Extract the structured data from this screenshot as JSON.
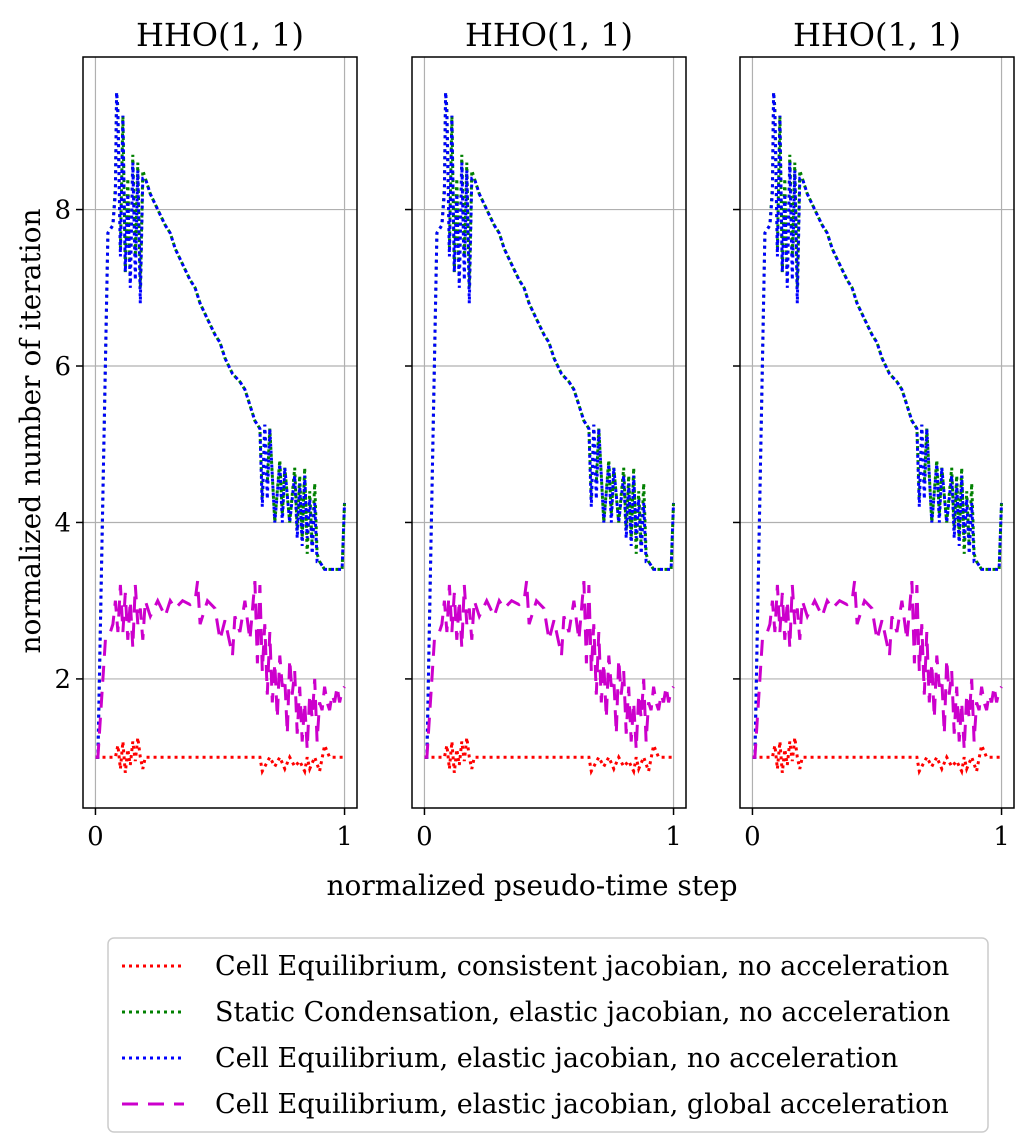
{
  "xlabel": "normalized pseudo-time step",
  "ylabel": "normalized number of iteration",
  "panel_titles": [
    "HHO(1, 1)",
    "HHO(1, 1)",
    "HHO(1, 1)"
  ],
  "x_ticks": [
    0,
    1
  ],
  "y_ticks": [
    2,
    4,
    6,
    8
  ],
  "legend": [
    "Cell Equilibrium, consistent jacobian, no acceleration",
    "Static Condensation, elastic jacobian, no acceleration",
    "Cell Equilibrium, elastic jacobian, no acceleration",
    "Cell Equilibrium, elastic jacobian, global acceleration"
  ],
  "chart_data": {
    "type": "line",
    "panels": 3,
    "sharey": true,
    "xlim": [
      -0.05,
      1.05
    ],
    "ylim": [
      0.35,
      9.95
    ],
    "grid": true,
    "legend_position": "below",
    "colors": {
      "red": "#ff0000",
      "green": "#008000",
      "blue": "#0000ff",
      "magenta": "#cc00cc"
    },
    "series": [
      {
        "name": "Cell Equilibrium, consistent jacobian, no acceleration",
        "color": "#ff0000",
        "dash": "dotted",
        "x": [
          0,
          0.03,
          0.08,
          0.09,
          0.1,
          0.11,
          0.12,
          0.13,
          0.14,
          0.15,
          0.16,
          0.17,
          0.18,
          0.19,
          0.2,
          0.66,
          0.67,
          0.7,
          0.72,
          0.74,
          0.76,
          0.78,
          0.8,
          0.82,
          0.84,
          0.85,
          0.86,
          0.88,
          0.9,
          0.92,
          0.94,
          1.0
        ],
        "y": [
          1.0,
          1.0,
          1.0,
          1.15,
          0.85,
          1.2,
          0.8,
          1.1,
          0.9,
          1.2,
          0.95,
          1.25,
          1.0,
          0.85,
          1.0,
          1.0,
          0.82,
          1.0,
          0.88,
          1.0,
          0.85,
          1.0,
          0.88,
          0.95,
          0.82,
          1.0,
          0.85,
          1.0,
          0.82,
          1.15,
          1.0,
          1.0
        ]
      },
      {
        "name": "Static Condensation, elastic jacobian, no acceleration",
        "color": "#008000",
        "dash": "dotted",
        "x": [
          0,
          0.01,
          0.05,
          0.07,
          0.08,
          0.085,
          0.09,
          0.1,
          0.11,
          0.12,
          0.13,
          0.14,
          0.15,
          0.16,
          0.17,
          0.18,
          0.19,
          0.2,
          0.22,
          0.25,
          0.28,
          0.3,
          0.32,
          0.35,
          0.38,
          0.4,
          0.42,
          0.45,
          0.48,
          0.5,
          0.52,
          0.55,
          0.58,
          0.6,
          0.62,
          0.64,
          0.66,
          0.67,
          0.68,
          0.69,
          0.7,
          0.72,
          0.74,
          0.75,
          0.76,
          0.78,
          0.8,
          0.81,
          0.82,
          0.83,
          0.84,
          0.85,
          0.86,
          0.87,
          0.88,
          0.89,
          0.9,
          0.92,
          0.94,
          0.96,
          0.98,
          0.99,
          1.0
        ],
        "y": [
          1.0,
          1.0,
          7.7,
          7.8,
          8.3,
          9.5,
          9.3,
          7.5,
          9.2,
          7.2,
          8.4,
          7.1,
          8.7,
          7.4,
          8.6,
          7.0,
          8.5,
          8.4,
          8.2,
          8.0,
          7.8,
          7.7,
          7.5,
          7.3,
          7.1,
          7.0,
          6.8,
          6.6,
          6.4,
          6.3,
          6.1,
          5.9,
          5.8,
          5.7,
          5.5,
          5.3,
          5.2,
          4.3,
          5.25,
          4.5,
          5.2,
          4.0,
          4.8,
          4.1,
          4.7,
          4.0,
          4.7,
          3.9,
          4.6,
          3.8,
          4.7,
          3.6,
          4.4,
          3.7,
          4.5,
          3.6,
          3.5,
          3.4,
          3.4,
          3.4,
          3.4,
          3.4,
          4.25
        ]
      },
      {
        "name": "Cell Equilibrium, elastic jacobian, no acceleration",
        "color": "#0000ff",
        "dash": "dotted",
        "x": [
          0,
          0.01,
          0.05,
          0.07,
          0.08,
          0.085,
          0.09,
          0.1,
          0.11,
          0.12,
          0.13,
          0.14,
          0.15,
          0.16,
          0.17,
          0.18,
          0.19,
          0.2,
          0.22,
          0.25,
          0.28,
          0.3,
          0.32,
          0.35,
          0.38,
          0.4,
          0.42,
          0.45,
          0.48,
          0.5,
          0.52,
          0.55,
          0.58,
          0.6,
          0.62,
          0.64,
          0.66,
          0.67,
          0.68,
          0.69,
          0.7,
          0.72,
          0.74,
          0.75,
          0.76,
          0.78,
          0.8,
          0.81,
          0.82,
          0.83,
          0.84,
          0.85,
          0.86,
          0.87,
          0.88,
          0.89,
          0.9,
          0.92,
          0.94,
          0.96,
          0.98,
          0.99,
          1.0
        ],
        "y": [
          1.0,
          1.0,
          7.7,
          7.8,
          8.2,
          9.5,
          9.2,
          7.4,
          9.2,
          7.2,
          8.2,
          7.0,
          8.6,
          7.1,
          8.5,
          6.8,
          8.4,
          8.4,
          8.2,
          8.0,
          7.8,
          7.7,
          7.5,
          7.3,
          7.1,
          7.0,
          6.8,
          6.6,
          6.4,
          6.3,
          6.1,
          5.9,
          5.8,
          5.7,
          5.5,
          5.3,
          5.2,
          4.2,
          5.25,
          4.3,
          5.2,
          4.0,
          4.75,
          4.0,
          4.7,
          4.0,
          4.6,
          3.8,
          4.5,
          3.7,
          4.6,
          3.8,
          4.3,
          3.6,
          4.25,
          3.5,
          3.5,
          3.4,
          3.4,
          3.4,
          3.4,
          3.4,
          4.25
        ]
      },
      {
        "name": "Cell Equilibrium, elastic jacobian, global acceleration",
        "color": "#cc00cc",
        "dash": "dashed",
        "x": [
          0,
          0.01,
          0.04,
          0.06,
          0.07,
          0.08,
          0.09,
          0.1,
          0.11,
          0.12,
          0.13,
          0.14,
          0.15,
          0.16,
          0.17,
          0.18,
          0.19,
          0.2,
          0.22,
          0.25,
          0.28,
          0.3,
          0.32,
          0.35,
          0.38,
          0.4,
          0.41,
          0.42,
          0.45,
          0.48,
          0.5,
          0.52,
          0.55,
          0.56,
          0.58,
          0.6,
          0.62,
          0.64,
          0.65,
          0.66,
          0.67,
          0.68,
          0.69,
          0.7,
          0.71,
          0.72,
          0.73,
          0.74,
          0.75,
          0.76,
          0.77,
          0.78,
          0.79,
          0.8,
          0.81,
          0.82,
          0.83,
          0.84,
          0.85,
          0.86,
          0.87,
          0.88,
          0.89,
          0.9,
          0.91,
          0.92,
          0.93,
          0.94,
          0.95,
          0.96,
          0.97,
          0.98,
          0.99,
          1.0
        ],
        "y": [
          1.0,
          1.0,
          2.5,
          2.6,
          2.7,
          3.0,
          2.6,
          3.2,
          2.6,
          3.1,
          2.5,
          3.0,
          2.4,
          3.2,
          2.7,
          2.9,
          2.5,
          3.0,
          2.8,
          3.0,
          2.8,
          3.0,
          2.9,
          3.0,
          2.95,
          3.0,
          3.25,
          2.7,
          3.0,
          2.9,
          2.5,
          2.75,
          2.3,
          2.8,
          2.6,
          3.0,
          2.5,
          3.25,
          2.2,
          3.2,
          2.1,
          2.7,
          1.8,
          2.6,
          1.7,
          2.2,
          1.5,
          2.3,
          1.9,
          2.0,
          1.3,
          2.25,
          1.8,
          2.1,
          1.3,
          1.9,
          1.2,
          1.7,
          1.1,
          1.8,
          1.5,
          2.0,
          1.2,
          1.7,
          1.6,
          1.9,
          1.7,
          1.6,
          1.8,
          1.7,
          1.9,
          1.7,
          1.85,
          1.9
        ]
      }
    ]
  }
}
